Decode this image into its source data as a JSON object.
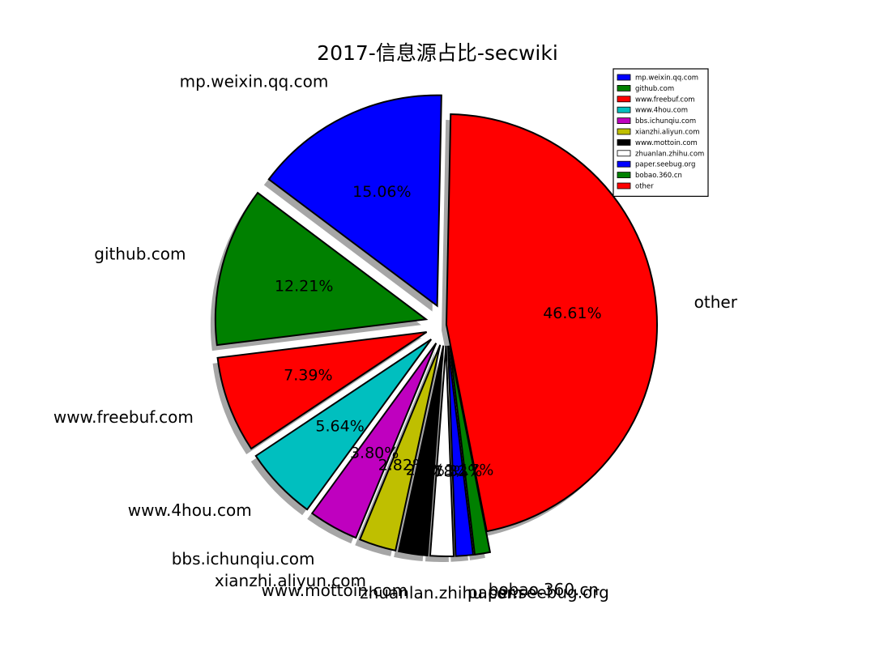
{
  "chart_data": {
    "type": "pie",
    "title": "2017-信息源占比-secwiki",
    "categories": [
      "other",
      "mp.weixin.qq.com",
      "github.com",
      "www.freebuf.com",
      "www.4hou.com",
      "bbs.ichunqiu.com",
      "xianzhi.aliyun.com",
      "www.mottoin.com",
      "zhuanlan.zhihu.com",
      "paper.seebug.org",
      "bobao.360.cn"
    ],
    "values": [
      46.61,
      15.06,
      12.21,
      7.39,
      5.64,
      3.8,
      2.82,
      2.2,
      1.78,
      1.32,
      1.17
    ],
    "value_labels": [
      "46.61%",
      "15.06%",
      "12.21%",
      "7.39%",
      "5.64%",
      "3.80%",
      "2.82%",
      "2.2%",
      "1.78%",
      "1.32%",
      "1.17%"
    ],
    "colors": [
      "#ff0000",
      "#0000ff",
      "#008000",
      "#ff0000",
      "#00bfbf",
      "#bf00bf",
      "#bfbf00",
      "#000000",
      "#ffffff",
      "#0000ff",
      "#008000"
    ],
    "legend": {
      "placement": "top-right",
      "entries": [
        "mp.weixin.qq.com",
        "github.com",
        "www.freebuf.com",
        "www.4hou.com",
        "bbs.ichunqiu.com",
        "xianzhi.aliyun.com",
        "www.mottoin.com",
        "zhuanlan.zhihu.com",
        "paper.seebug.org",
        "bobao.360.cn",
        "other"
      ],
      "colors": [
        "#0000ff",
        "#008000",
        "#ff0000",
        "#00bfbf",
        "#bf00bf",
        "#bfbf00",
        "#000000",
        "#ffffff",
        "#0000ff",
        "#008000",
        "#ff0000"
      ]
    },
    "exploded": true,
    "shadow": true
  }
}
